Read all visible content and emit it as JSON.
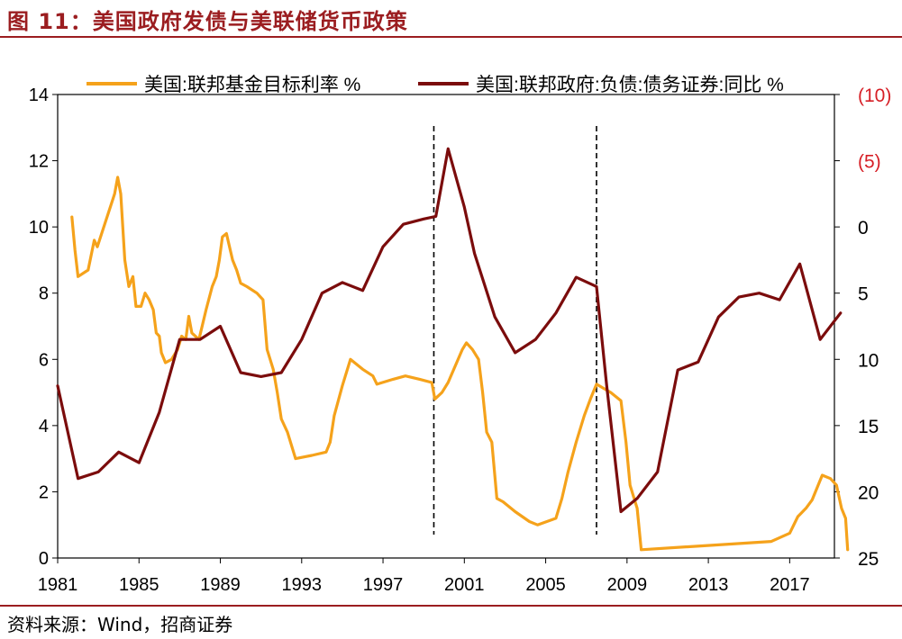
{
  "figure_title": "图 11：美国政府发债与美联储货币政策",
  "source": "资料来源：Wind，招商证券",
  "colors": {
    "series1": "#f5a21b",
    "series2": "#7b0c0c",
    "accent": "#9b1d20",
    "right_axis_red": "#d61f26"
  },
  "chart_data": {
    "type": "line",
    "title": "",
    "xlabel": "",
    "ylabel": "",
    "x_ticks": [
      "1981",
      "1985",
      "1989",
      "1993",
      "1997",
      "2001",
      "2005",
      "2009",
      "2013",
      "2017"
    ],
    "xlim": [
      1981,
      2019.2
    ],
    "y_left": {
      "lim": [
        0,
        14
      ],
      "ticks": [
        "0",
        "2",
        "4",
        "6",
        "8",
        "10",
        "12",
        "14"
      ]
    },
    "y_right": {
      "lim": [
        -10,
        25
      ],
      "inverted": true,
      "ticks": [
        {
          "value": -10,
          "label": "(10)"
        },
        {
          "value": -5,
          "label": "(5)"
        },
        {
          "value": 0,
          "label": "0"
        },
        {
          "value": 5,
          "label": "5"
        },
        {
          "value": 10,
          "label": "10"
        },
        {
          "value": 15,
          "label": "15"
        },
        {
          "value": 20,
          "label": "20"
        },
        {
          "value": 25,
          "label": "25"
        }
      ]
    },
    "legend": "top",
    "grid": false,
    "vlines": [
      1999.5,
      2007.5
    ],
    "series": [
      {
        "name": "美国:联邦基金目标利率 %",
        "axis": "left",
        "color": "#f5a21b",
        "points": [
          [
            1981.7,
            10.3
          ],
          [
            1981.85,
            9.3
          ],
          [
            1982.0,
            8.5
          ],
          [
            1982.5,
            8.7
          ],
          [
            1982.8,
            9.6
          ],
          [
            1982.95,
            9.4
          ],
          [
            1983.8,
            11.0
          ],
          [
            1983.95,
            11.5
          ],
          [
            1984.1,
            11.0
          ],
          [
            1984.3,
            9.0
          ],
          [
            1984.5,
            8.2
          ],
          [
            1984.7,
            8.5
          ],
          [
            1984.85,
            7.6
          ],
          [
            1985.1,
            7.6
          ],
          [
            1985.3,
            8.0
          ],
          [
            1985.5,
            7.8
          ],
          [
            1985.7,
            7.5
          ],
          [
            1985.85,
            6.8
          ],
          [
            1986.0,
            6.7
          ],
          [
            1986.1,
            6.2
          ],
          [
            1986.3,
            5.9
          ],
          [
            1986.6,
            6.0
          ],
          [
            1986.9,
            6.3
          ],
          [
            1987.1,
            6.7
          ],
          [
            1987.3,
            6.6
          ],
          [
            1987.45,
            7.3
          ],
          [
            1987.6,
            6.8
          ],
          [
            1987.95,
            6.6
          ],
          [
            1988.3,
            7.5
          ],
          [
            1988.6,
            8.2
          ],
          [
            1988.8,
            8.5
          ],
          [
            1988.95,
            9.0
          ],
          [
            1989.1,
            9.7
          ],
          [
            1989.3,
            9.8
          ],
          [
            1989.6,
            9.0
          ],
          [
            1989.8,
            8.7
          ],
          [
            1990.0,
            8.3
          ],
          [
            1990.3,
            8.2
          ],
          [
            1990.8,
            8.0
          ],
          [
            1991.1,
            7.8
          ],
          [
            1991.3,
            6.3
          ],
          [
            1991.6,
            5.7
          ],
          [
            1991.8,
            5.0
          ],
          [
            1992.0,
            4.2
          ],
          [
            1992.3,
            3.8
          ],
          [
            1992.7,
            3.0
          ],
          [
            1993.5,
            3.1
          ],
          [
            1994.2,
            3.2
          ],
          [
            1994.4,
            3.5
          ],
          [
            1994.6,
            4.3
          ],
          [
            1995.0,
            5.2
          ],
          [
            1995.4,
            6.0
          ],
          [
            1996.0,
            5.7
          ],
          [
            1996.5,
            5.5
          ],
          [
            1996.7,
            5.25
          ],
          [
            1997.5,
            5.4
          ],
          [
            1998.1,
            5.5
          ],
          [
            1998.8,
            5.4
          ],
          [
            1999.4,
            5.3
          ],
          [
            1999.55,
            4.8
          ],
          [
            1999.9,
            5.0
          ],
          [
            2000.2,
            5.3
          ],
          [
            2000.55,
            5.8
          ],
          [
            2000.9,
            6.3
          ],
          [
            2001.1,
            6.5
          ],
          [
            2001.4,
            6.3
          ],
          [
            2001.7,
            6.0
          ],
          [
            2001.9,
            5.0
          ],
          [
            2002.1,
            3.8
          ],
          [
            2002.35,
            3.5
          ],
          [
            2002.6,
            1.8
          ],
          [
            2002.9,
            1.7
          ],
          [
            2003.5,
            1.4
          ],
          [
            2004.2,
            1.1
          ],
          [
            2004.6,
            1.0
          ],
          [
            2005.5,
            1.2
          ],
          [
            2005.8,
            1.8
          ],
          [
            2006.1,
            2.6
          ],
          [
            2006.5,
            3.5
          ],
          [
            2006.9,
            4.3
          ],
          [
            2007.2,
            4.8
          ],
          [
            2007.5,
            5.25
          ],
          [
            2008.2,
            5.0
          ],
          [
            2008.7,
            4.75
          ],
          [
            2008.95,
            3.5
          ],
          [
            2009.15,
            2.2
          ],
          [
            2009.5,
            1.5
          ],
          [
            2009.7,
            0.25
          ],
          [
            2016.1,
            0.5
          ],
          [
            2017.0,
            0.75
          ],
          [
            2017.4,
            1.25
          ],
          [
            2017.8,
            1.5
          ],
          [
            2018.1,
            1.75
          ],
          [
            2018.6,
            2.5
          ],
          [
            2019.0,
            2.4
          ],
          [
            2019.3,
            2.2
          ],
          [
            2019.55,
            1.5
          ],
          [
            2019.75,
            1.2
          ],
          [
            2019.85,
            0.25
          ]
        ]
      },
      {
        "name": "美国:联邦政府:负债:债务证券:同比 %",
        "axis": "right",
        "color": "#7b0c0c",
        "points": [
          [
            1981.0,
            12.0
          ],
          [
            1982.0,
            19.0
          ],
          [
            1983.0,
            18.5
          ],
          [
            1984.0,
            17.0
          ],
          [
            1985.0,
            17.8
          ],
          [
            1986.0,
            14.0
          ],
          [
            1987.0,
            8.5
          ],
          [
            1988.0,
            8.5
          ],
          [
            1989.0,
            7.5
          ],
          [
            1990.0,
            11.0
          ],
          [
            1991.0,
            11.3
          ],
          [
            1992.0,
            11.0
          ],
          [
            1993.0,
            8.5
          ],
          [
            1994.0,
            5.0
          ],
          [
            1995.0,
            4.2
          ],
          [
            1996.0,
            4.8
          ],
          [
            1997.0,
            1.5
          ],
          [
            1998.0,
            -0.2
          ],
          [
            1999.0,
            -0.6
          ],
          [
            1999.6,
            -0.8
          ],
          [
            2000.2,
            -5.9
          ],
          [
            2001.0,
            -1.5
          ],
          [
            2001.5,
            2.0
          ],
          [
            2002.5,
            6.8
          ],
          [
            2003.5,
            9.5
          ],
          [
            2004.5,
            8.5
          ],
          [
            2005.5,
            6.5
          ],
          [
            2006.5,
            3.8
          ],
          [
            2007.5,
            4.5
          ],
          [
            2008.0,
            12.0
          ],
          [
            2008.7,
            21.5
          ],
          [
            2009.5,
            20.5
          ],
          [
            2010.5,
            18.5
          ],
          [
            2011.5,
            10.8
          ],
          [
            2012.5,
            10.2
          ],
          [
            2013.5,
            6.8
          ],
          [
            2014.5,
            5.3
          ],
          [
            2015.5,
            5.0
          ],
          [
            2016.5,
            5.5
          ],
          [
            2017.5,
            2.8
          ],
          [
            2018.5,
            8.5
          ],
          [
            2019.5,
            6.5
          ]
        ]
      }
    ]
  }
}
